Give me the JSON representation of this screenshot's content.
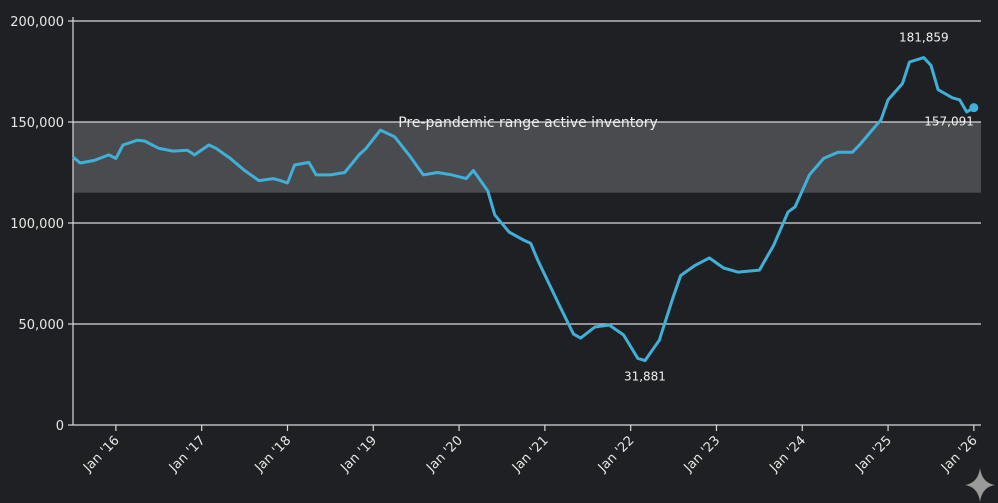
{
  "chart_data": {
    "type": "line",
    "title": "",
    "xlabel": "",
    "ylabel": "",
    "ylim": [
      0,
      200000
    ],
    "xlim": [
      "2015-07",
      "2026-02"
    ],
    "grid": "horizontal",
    "y_ticks": [
      "0",
      "50,000",
      "100,000",
      "150,000",
      "200,000"
    ],
    "y_tick_values": [
      0,
      50000,
      100000,
      150000,
      200000
    ],
    "x_ticks": [
      "Jan '16",
      "Jan '17",
      "Jan '18",
      "Jan '19",
      "Jan '20",
      "Jan '21",
      "Jan '22",
      "Jan '23",
      "Jan '24",
      "Jan '25",
      "Jan '26"
    ],
    "x_tick_dates": [
      "2016-01",
      "2017-01",
      "2018-01",
      "2019-01",
      "2020-01",
      "2021-01",
      "2022-01",
      "2023-01",
      "2024-01",
      "2025-01",
      "2026-01"
    ],
    "band": {
      "label": "Pre-pandemic range active inventory",
      "low": 115000,
      "high": 150000,
      "color": "#4a4b4f"
    },
    "series": [
      {
        "color": "#3fb0d8",
        "x": [
          "2015-07",
          "2015-08",
          "2015-10",
          "2015-12",
          "2016-01",
          "2016-02",
          "2016-04",
          "2016-05",
          "2016-07",
          "2016-09",
          "2016-11",
          "2016-12",
          "2017-02",
          "2017-03",
          "2017-05",
          "2017-07",
          "2017-09",
          "2017-11",
          "2017-12",
          "2018-01",
          "2018-02",
          "2018-04",
          "2018-05",
          "2018-07",
          "2018-09",
          "2018-11",
          "2018-12",
          "2019-02",
          "2019-04",
          "2019-06",
          "2019-08",
          "2019-10",
          "2019-12",
          "2020-02",
          "2020-03",
          "2020-05",
          "2020-06",
          "2020-08",
          "2020-10",
          "2020-11",
          "2020-12",
          "2021-03",
          "2021-05",
          "2021-06",
          "2021-08",
          "2021-10",
          "2021-12",
          "2022-02",
          "2022-03",
          "2022-05",
          "2022-07",
          "2022-08",
          "2022-10",
          "2022-12",
          "2023-02",
          "2023-04",
          "2023-07",
          "2023-09",
          "2023-11",
          "2023-12",
          "2024-02",
          "2024-04",
          "2024-06",
          "2024-08",
          "2024-09",
          "2024-11",
          "2024-12",
          "2025-01",
          "2025-03",
          "2025-04",
          "2025-06",
          "2025-07",
          "2025-08",
          "2025-10",
          "2025-11",
          "2025-12",
          "2026-01"
        ],
        "values": [
          132700,
          129700,
          131000,
          133700,
          132000,
          138600,
          141000,
          140600,
          137000,
          135600,
          136000,
          133700,
          138600,
          137000,
          132000,
          126000,
          121000,
          122000,
          121000,
          119800,
          128700,
          130000,
          123800,
          123800,
          125000,
          133700,
          137000,
          146000,
          142600,
          133700,
          123800,
          125000,
          123800,
          122000,
          126000,
          116000,
          104000,
          95500,
          91600,
          90000,
          81700,
          59400,
          45000,
          43000,
          48500,
          49500,
          44600,
          33000,
          31881,
          42000,
          64000,
          74000,
          79000,
          82700,
          77700,
          75700,
          76700,
          89000,
          105400,
          108000,
          123800,
          132000,
          135000,
          135000,
          138600,
          147000,
          151000,
          161000,
          169000,
          179700,
          181859,
          178000,
          166000,
          162000,
          161000,
          155000,
          157091
        ]
      }
    ],
    "annotations": [
      {
        "label": "181,859",
        "x": "2025-06",
        "value": 181859
      },
      {
        "label": "31,881",
        "x": "2022-03",
        "value": 31881
      },
      {
        "label": "157,091",
        "x": "2026-01",
        "value": 157091
      }
    ]
  },
  "watermark": {
    "icon": "sparkle-icon"
  }
}
